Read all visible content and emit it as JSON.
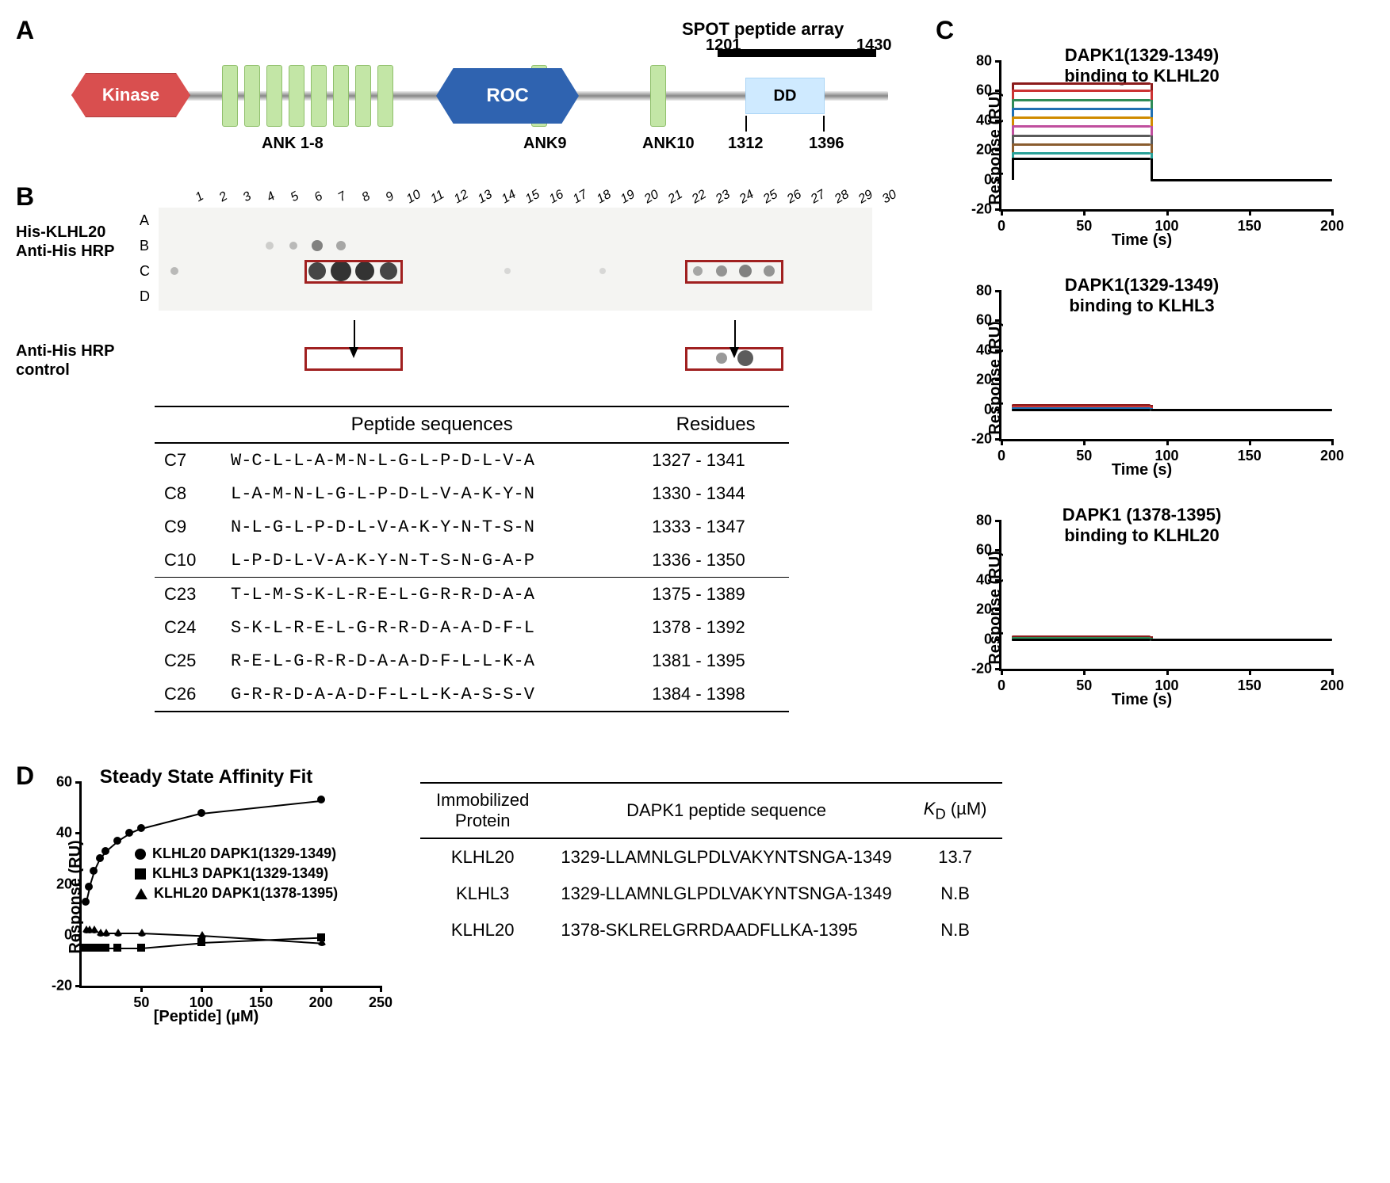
{
  "panelA": {
    "label": "A",
    "spot_label": "SPOT peptide array",
    "spot_start": "1201",
    "spot_end": "1430",
    "domains": {
      "kinase": "Kinase",
      "roc": "ROC",
      "dd": "DD",
      "ank_group": "ANK 1-8",
      "ank9": "ANK9",
      "ank10": "ANK10"
    },
    "dd_start": "1312",
    "dd_end": "1396",
    "colors": {
      "kinase": "#d94f4f",
      "ank": "#c3e6a6",
      "roc": "#2f63b0",
      "dd": "#cfeaff"
    }
  },
  "panelB": {
    "label": "B",
    "cols": [
      "1",
      "2",
      "3",
      "4",
      "5",
      "6",
      "7",
      "8",
      "9",
      "10",
      "11",
      "12",
      "13",
      "14",
      "15",
      "16",
      "17",
      "18",
      "19",
      "20",
      "21",
      "22",
      "23",
      "24",
      "25",
      "26",
      "27",
      "28",
      "29",
      "30"
    ],
    "rows": [
      "A",
      "B",
      "C",
      "D"
    ],
    "side1a": "His-KLHL20",
    "side1b": "Anti-His HRP",
    "side2a": "Anti-His HRP",
    "side2b": "control",
    "box_color": "#a02020",
    "spots_main": [
      {
        "row": 1,
        "col": 5,
        "d": 10,
        "op": 0.2
      },
      {
        "row": 1,
        "col": 6,
        "d": 10,
        "op": 0.3
      },
      {
        "row": 1,
        "col": 7,
        "d": 14,
        "op": 0.6
      },
      {
        "row": 1,
        "col": 8,
        "d": 12,
        "op": 0.4
      },
      {
        "row": 2,
        "col": 1,
        "d": 10,
        "op": 0.3
      },
      {
        "row": 2,
        "col": 7,
        "d": 22,
        "op": 0.9
      },
      {
        "row": 2,
        "col": 8,
        "d": 26,
        "op": 1.0
      },
      {
        "row": 2,
        "col": 9,
        "d": 24,
        "op": 1.0
      },
      {
        "row": 2,
        "col": 10,
        "d": 22,
        "op": 0.9
      },
      {
        "row": 2,
        "col": 15,
        "d": 8,
        "op": 0.15
      },
      {
        "row": 2,
        "col": 19,
        "d": 8,
        "op": 0.15
      },
      {
        "row": 2,
        "col": 23,
        "d": 12,
        "op": 0.4
      },
      {
        "row": 2,
        "col": 24,
        "d": 14,
        "op": 0.5
      },
      {
        "row": 2,
        "col": 25,
        "d": 16,
        "op": 0.6
      },
      {
        "row": 2,
        "col": 26,
        "d": 14,
        "op": 0.5
      }
    ],
    "spots_ctrl": [
      {
        "col": 24,
        "d": 14,
        "op": 0.5
      },
      {
        "col": 25,
        "d": 20,
        "op": 0.8
      }
    ],
    "table_head": {
      "seq": "Peptide sequences",
      "res": "Residues"
    },
    "peptides": [
      {
        "id": "C7",
        "seq": "W-C-L-L-A-M-N-L-G-L-P-D-L-V-A",
        "res": "1327 - 1341"
      },
      {
        "id": "C8",
        "seq": "L-A-M-N-L-G-L-P-D-L-V-A-K-Y-N",
        "res": "1330 - 1344"
      },
      {
        "id": "C9",
        "seq": "N-L-G-L-P-D-L-V-A-K-Y-N-T-S-N",
        "res": "1333 - 1347"
      },
      {
        "id": "C10",
        "seq": "L-P-D-L-V-A-K-Y-N-T-S-N-G-A-P",
        "res": "1336 - 1350",
        "hr": true
      },
      {
        "id": "C23",
        "seq": "T-L-M-S-K-L-R-E-L-G-R-R-D-A-A",
        "res": "1375 - 1389"
      },
      {
        "id": "C24",
        "seq": "S-K-L-R-E-L-G-R-R-D-A-A-D-F-L",
        "res": "1378 - 1392"
      },
      {
        "id": "C25",
        "seq": "R-E-L-G-R-R-D-A-A-D-F-L-L-K-A",
        "res": "1381 - 1395"
      },
      {
        "id": "C26",
        "seq": "G-R-R-D-A-A-D-F-L-L-K-A-S-S-V",
        "res": "1384 - 1398",
        "last": true
      }
    ]
  },
  "panelC": {
    "label": "C",
    "ylabel": "Response (RU)",
    "xlabel": "Time (s)",
    "xlim": [
      0,
      200
    ],
    "xticks": [
      0,
      50,
      100,
      150,
      200
    ],
    "ylim": [
      -20,
      80
    ],
    "yticks": [
      -20,
      0,
      20,
      40,
      60,
      80
    ],
    "trace_colors": [
      "#8b1a1a",
      "#cc3333",
      "#2e8b57",
      "#1f6fb2",
      "#d08b00",
      "#c04f9e",
      "#5a5a5a",
      "#8a5c2e",
      "#2aa198",
      "#000000"
    ],
    "charts": [
      {
        "title1": "DAPK1(1329-1349)",
        "title2": "binding to KLHL20",
        "plateaus": [
          65,
          60,
          54,
          48,
          42,
          36,
          30,
          24,
          18,
          14
        ],
        "t_on": 6,
        "t_off": 90
      },
      {
        "title1": "DAPK1(1329-1349)",
        "title2": "binding to KLHL3",
        "plateaus": [
          3,
          2,
          1,
          1,
          0,
          0,
          0,
          0,
          0,
          0
        ],
        "t_on": 6,
        "t_off": 90,
        "spike": 10
      },
      {
        "title1": "DAPK1 (1378-1395)",
        "title2": "binding to KLHL20",
        "plateaus": [
          2,
          1,
          1,
          0,
          0,
          0,
          0,
          0,
          0,
          0
        ],
        "t_on": 6,
        "t_off": 90,
        "spike": 8
      }
    ]
  },
  "panelD": {
    "label": "D",
    "title": "Steady State Affinity Fit",
    "ylabel": "Response (RU)",
    "xlabel": "[Peptide] (µM)",
    "xlim": [
      0,
      250
    ],
    "xticks": [
      50,
      100,
      150,
      200,
      250
    ],
    "ylim": [
      -20,
      60
    ],
    "yticks": [
      -20,
      0,
      20,
      40,
      60
    ],
    "legend": [
      {
        "marker": "circle",
        "text": "KLHL20 DAPK1(1329-1349)"
      },
      {
        "marker": "square",
        "text": "KLHL3   DAPK1(1329-1349)"
      },
      {
        "marker": "triangle",
        "text": "KLHL20 DAPK1(1378-1395)"
      }
    ],
    "series": {
      "circle_x": [
        3,
        6,
        10,
        15,
        20,
        30,
        40,
        50,
        100,
        200
      ],
      "circle_y": [
        13,
        19,
        25,
        30,
        33,
        37,
        40,
        42,
        48,
        53
      ],
      "square_x": [
        3,
        6,
        10,
        15,
        20,
        30,
        50,
        100,
        200
      ],
      "square_y": [
        -5,
        -5,
        -5,
        -5,
        -5,
        -5,
        -5,
        -3,
        -1
      ],
      "triangle_x": [
        3,
        6,
        10,
        15,
        20,
        30,
        50,
        100,
        200
      ],
      "triangle_y": [
        2,
        2,
        2,
        1,
        1,
        1,
        1,
        0,
        -3
      ]
    },
    "table_head": {
      "prot": "Immobilized\nProtein",
      "pep": "DAPK1 peptide sequence",
      "kd": "KD (µM)"
    },
    "rows": [
      {
        "prot": "KLHL20",
        "seq": "1329-LLAMNLGLPDLVAKYNTSNGA-1349",
        "kd": "13.7"
      },
      {
        "prot": "KLHL3",
        "seq": "1329-LLAMNLGLPDLVAKYNTSNGA-1349",
        "kd": "N.B"
      },
      {
        "prot": "KLHL20",
        "seq": "1378-SKLRELGRRDAADFLLKA-1395",
        "kd": "N.B"
      }
    ]
  }
}
